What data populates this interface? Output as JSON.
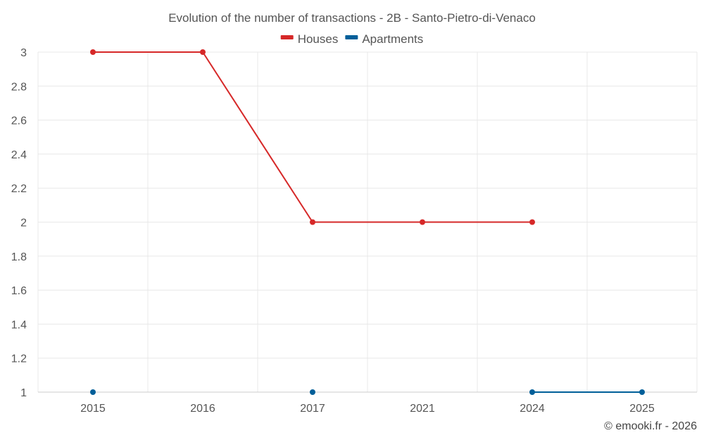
{
  "chart_data": {
    "type": "line",
    "title": "Evolution of the number of transactions - 2B - Santo-Pietro-di-Venaco",
    "categories": [
      "2015",
      "2016",
      "2017",
      "2021",
      "2024",
      "2025"
    ],
    "ylim": [
      1,
      3
    ],
    "yticks": [
      "1",
      "1.2",
      "1.4",
      "1.6",
      "1.8",
      "2",
      "2.2",
      "2.4",
      "2.6",
      "2.8",
      "3"
    ],
    "legend_position": "top-center",
    "series": [
      {
        "name": "Houses",
        "color": "#d62828",
        "values": [
          3,
          3,
          2,
          2,
          2,
          null
        ]
      },
      {
        "name": "Apartments",
        "color": "#005f99",
        "values": [
          1,
          null,
          1,
          null,
          1,
          1
        ]
      }
    ]
  },
  "credit": "© emooki.fr - 2026"
}
